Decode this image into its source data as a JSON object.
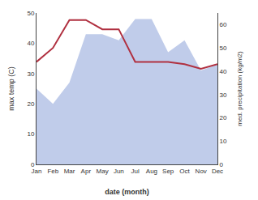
{
  "chart_data": {
    "type": "line",
    "xlabel": "date (month)",
    "ylabel": "max temp (C)",
    "y2label": "med. precipitation (kg/m2)",
    "categories": [
      "Jan",
      "Feb",
      "Mar",
      "Apr",
      "May",
      "Jun",
      "Jul",
      "Aug",
      "Sep",
      "Oct",
      "Nov",
      "Dec"
    ],
    "series": [
      {
        "type": "area",
        "color": "#c0ccea",
        "values": [
          25,
          20,
          27,
          43,
          43,
          41,
          48,
          48,
          37,
          41,
          31,
          33
        ]
      },
      {
        "type": "line",
        "color": "#b03040",
        "axis": "y2",
        "values": [
          44,
          50,
          62,
          62,
          58,
          58,
          44,
          44,
          44,
          43,
          41,
          43
        ]
      }
    ],
    "ylim": [
      0,
      50
    ],
    "yticks": [
      0,
      10,
      20,
      30,
      40,
      50
    ],
    "y2lim": [
      0,
      65
    ],
    "y2ticks": [
      0,
      10,
      20,
      30,
      40,
      50,
      60
    ],
    "grid": false
  }
}
